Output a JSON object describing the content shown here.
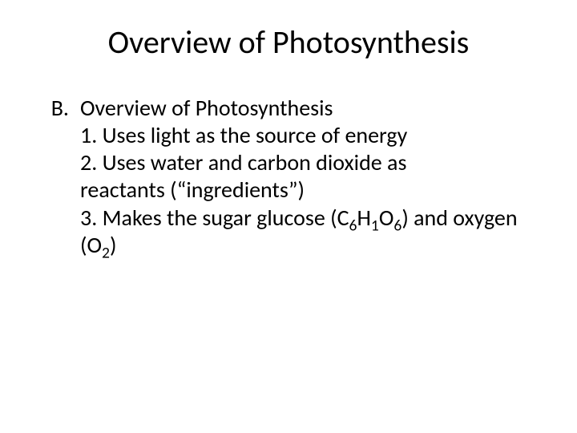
{
  "slide": {
    "title": "Overview of Photosynthesis",
    "title_fontsize": 40,
    "body_fontsize": 28,
    "text_color": "#000000",
    "background_color": "#ffffff",
    "font_family": "Calibri",
    "outline": {
      "marker": "B.",
      "heading": "Overview of Photosynthesis",
      "items": [
        {
          "marker": "1.",
          "text_before": " Uses light as the source of energy"
        },
        {
          "marker": "2.",
          "text_before": "Uses water and carbon dioxide as reactants (“ingredients”)"
        },
        {
          "marker": "3.",
          "text_before": "Makes the sugar glucose (C",
          "formula_parts": [
            {
              "sub": "6"
            },
            {
              "txt": "H"
            },
            {
              "sub": "1"
            },
            {
              "txt": "O"
            },
            {
              "sub": "6"
            },
            {
              "txt": ") and oxygen (O"
            },
            {
              "sub": "2"
            },
            {
              "txt": ")"
            }
          ]
        }
      ]
    }
  }
}
